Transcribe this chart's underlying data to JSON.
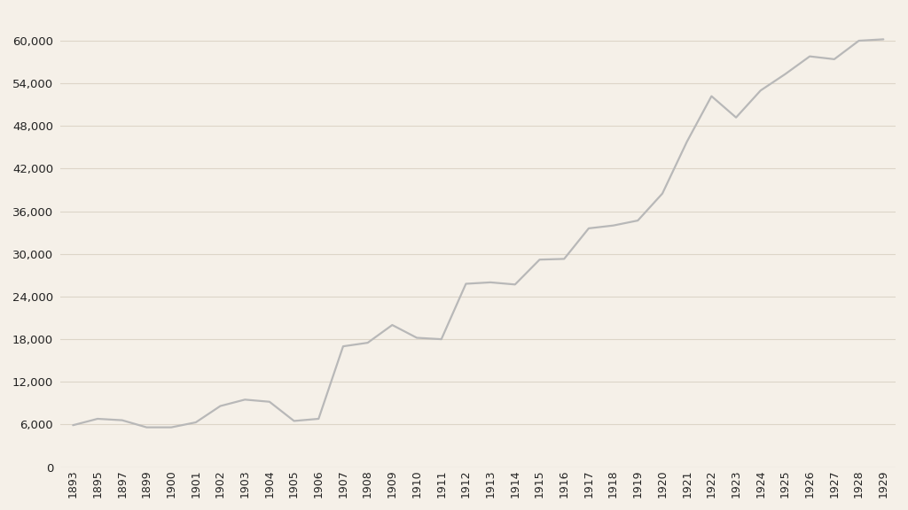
{
  "years": [
    1893,
    1895,
    1897,
    1899,
    1900,
    1901,
    1902,
    1903,
    1904,
    1905,
    1906,
    1907,
    1908,
    1909,
    1910,
    1911,
    1912,
    1913,
    1914,
    1915,
    1916,
    1917,
    1918,
    1919,
    1920,
    1921,
    1922,
    1923,
    1924,
    1925,
    1926,
    1927,
    1928,
    1929
  ],
  "values": [
    5900,
    6800,
    6600,
    5600,
    5600,
    6300,
    8600,
    9500,
    9200,
    6500,
    6800,
    17000,
    17500,
    20000,
    18200,
    18000,
    25800,
    26000,
    25700,
    29200,
    29300,
    33600,
    34000,
    34700,
    38500,
    45800,
    52200,
    49200,
    53000,
    55300,
    57800,
    57400,
    60000,
    60200
  ],
  "xtick_labels": [
    "1893",
    "1895",
    "1897",
    "1899",
    "1900",
    "1901",
    "1902",
    "1903",
    "1904",
    "1905",
    "1906",
    "1907",
    "1908",
    "1909",
    "1910",
    "1911",
    "1912",
    "1913",
    "1914",
    "1915",
    "1916",
    "1917",
    "1918",
    "1919",
    "1920",
    "1921",
    "1922",
    "1923",
    "1924",
    "1925",
    "1926",
    "1927",
    "1928",
    "1929"
  ],
  "line_color": "#b8b8b8",
  "background_color": "#f5f0e8",
  "grid_color": "#ddd5c8",
  "tick_label_color": "#222222",
  "ylim": [
    0,
    64000
  ],
  "yticks": [
    0,
    6000,
    12000,
    18000,
    24000,
    30000,
    36000,
    42000,
    48000,
    54000,
    60000
  ],
  "line_width": 1.6,
  "font_size": 9.5
}
